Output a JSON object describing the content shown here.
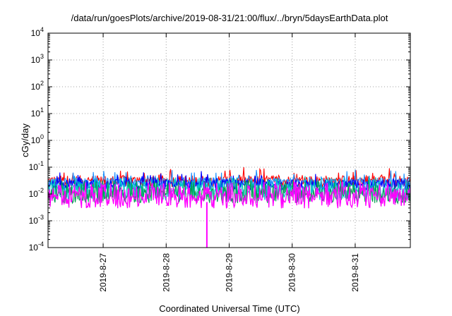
{
  "chart_data": {
    "type": "line",
    "title": "/data/run/goesPlots/archive/2019-08-31/21:00/flux/../bryn/5daysEarthData.plot",
    "xlabel": "Coordinated Universal Time (UTC)",
    "ylabel": "cGy/day",
    "y_scale": "log",
    "ylim": [
      0.0001,
      10000
    ],
    "y_ticks": [
      {
        "base": "10",
        "exp": "-4",
        "value": 0.0001
      },
      {
        "base": "10",
        "exp": "-3",
        "value": 0.001
      },
      {
        "base": "10",
        "exp": "-2",
        "value": 0.01
      },
      {
        "base": "10",
        "exp": "-1",
        "value": 0.1
      },
      {
        "base": "10",
        "exp": "0",
        "value": 1
      },
      {
        "base": "10",
        "exp": "1",
        "value": 10
      },
      {
        "base": "10",
        "exp": "2",
        "value": 100
      },
      {
        "base": "10",
        "exp": "3",
        "value": 1000
      },
      {
        "base": "10",
        "exp": "4",
        "value": 10000
      }
    ],
    "xlim": [
      "2019-08-26 03:00",
      "2019-08-31 21:00"
    ],
    "x_ticks": [
      {
        "label": "2019-8-27",
        "value": "2019-08-27"
      },
      {
        "label": "2019-8-28",
        "value": "2019-08-28"
      },
      {
        "label": "2019-8-29",
        "value": "2019-08-29"
      },
      {
        "label": "2019-8-30",
        "value": "2019-08-30"
      },
      {
        "label": "2019-8-31",
        "value": "2019-08-31"
      }
    ],
    "grid": true,
    "series": [
      {
        "color": "#ff0000",
        "base": 0.03,
        "spread": 0.22,
        "spikes": 0.07
      },
      {
        "color": "#1e90ff",
        "base": 0.026,
        "spread": 0.2,
        "spikes": 0.05
      },
      {
        "color": "#0000ff",
        "base": 0.022,
        "spread": 0.2,
        "spikes": 0.045
      },
      {
        "color": "#00c8c8",
        "base": 0.012,
        "spread": 0.32,
        "spikes": 0.03
      },
      {
        "color": "#00a050",
        "base": 0.009,
        "spread": 0.3,
        "spikes": 0.02
      },
      {
        "color": "#ff00ff",
        "base": 0.0055,
        "spread": 0.28,
        "spikes": 0.02
      }
    ],
    "events": [
      {
        "series_color": "#ff00ff",
        "x": "2019-08-28 15:30",
        "y": 0.0001
      }
    ]
  }
}
